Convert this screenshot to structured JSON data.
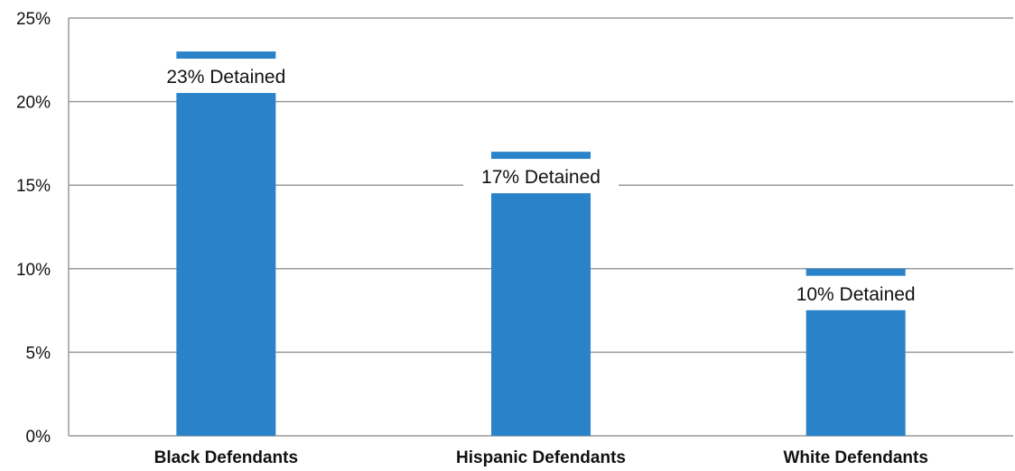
{
  "chart_data": {
    "type": "bar",
    "categories": [
      "Black Defendants",
      "Hispanic Defendants",
      "White Defendants"
    ],
    "values": [
      23,
      17,
      10
    ],
    "data_labels": [
      "23% Detained",
      "17% Detained",
      "10% Detained"
    ],
    "yticks": [
      "0%",
      "5%",
      "10%",
      "15%",
      "20%",
      "25%"
    ],
    "ylim": [
      0,
      25
    ],
    "grid": true,
    "bar_color": "#2a83c8",
    "grid_color": "#9a9a9a",
    "title": "",
    "xlabel": "",
    "ylabel": ""
  }
}
